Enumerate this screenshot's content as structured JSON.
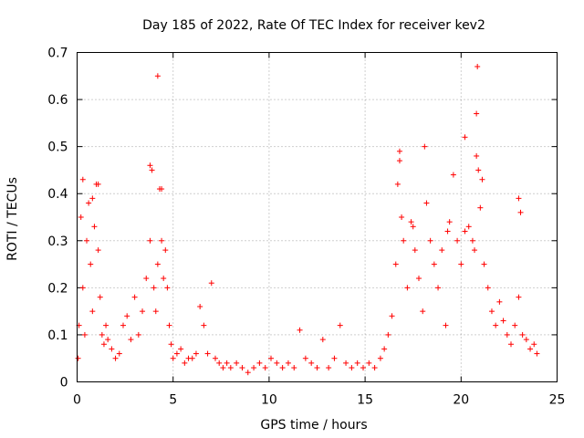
{
  "chart_data": {
    "type": "scatter",
    "title": "Day 185 of 2022, Rate Of TEC Index for receiver kev2",
    "xlabel": "GPS time / hours",
    "ylabel": "ROTI / TECUs",
    "xlim": [
      0,
      25
    ],
    "ylim": [
      0,
      0.7
    ],
    "x_ticks": [
      "0",
      "5",
      "10",
      "15",
      "20",
      "25"
    ],
    "y_ticks": [
      "0",
      "0.1",
      "0.2",
      "0.3",
      "0.4",
      "0.5",
      "0.6",
      "0.7"
    ],
    "grid": true,
    "marker": "+",
    "marker_color": "#ff0000",
    "series": [
      {
        "x": [
          0.05,
          0.1,
          0.2,
          0.3,
          0.4,
          0.5,
          0.6,
          0.7,
          0.8,
          0.9,
          1.0,
          1.1,
          1.2,
          1.3,
          1.4,
          1.5,
          1.6,
          1.8,
          2.0,
          2.2,
          2.4,
          2.6,
          2.8,
          3.0,
          3.2,
          3.4,
          3.6,
          3.8,
          3.9,
          4.0,
          4.1,
          4.2,
          4.3,
          4.4,
          4.5,
          4.6,
          4.7,
          4.8,
          4.9,
          5.0,
          5.2,
          5.4,
          5.6,
          5.8,
          6.0,
          6.2,
          6.4,
          6.6,
          6.8,
          7.0,
          7.2,
          7.4,
          7.6,
          7.8,
          8.0,
          8.3,
          8.6,
          8.9,
          9.2,
          9.5,
          9.8,
          10.1,
          10.4,
          10.7,
          11.0,
          11.3,
          11.6,
          11.9,
          12.2,
          12.5,
          12.8,
          13.1,
          13.4,
          13.7,
          14.0,
          14.3,
          14.6,
          14.9,
          15.2,
          15.5,
          15.8,
          16.0,
          16.2,
          16.4,
          16.6,
          16.7,
          16.8,
          16.9,
          17.0,
          17.2,
          17.4,
          17.6,
          17.8,
          18.0,
          18.2,
          18.4,
          18.6,
          18.8,
          19.0,
          19.2,
          19.4,
          19.6,
          19.8,
          20.0,
          20.2,
          20.4,
          20.6,
          20.7,
          20.8,
          20.9,
          21.0,
          21.2,
          21.4,
          21.6,
          21.8,
          22.0,
          22.2,
          22.4,
          22.6,
          22.8,
          23.0,
          23.2,
          23.4,
          23.6,
          23.8,
          23.95,
          0.3,
          0.8,
          1.1,
          3.8,
          4.2,
          4.4,
          16.8,
          17.5,
          18.1,
          19.3,
          20.2,
          20.8,
          20.85,
          21.1,
          23.0,
          23.1
        ],
        "y": [
          0.05,
          0.12,
          0.35,
          0.2,
          0.1,
          0.3,
          0.38,
          0.25,
          0.15,
          0.33,
          0.42,
          0.28,
          0.18,
          0.1,
          0.08,
          0.12,
          0.09,
          0.07,
          0.05,
          0.06,
          0.12,
          0.14,
          0.09,
          0.18,
          0.1,
          0.15,
          0.22,
          0.3,
          0.45,
          0.2,
          0.15,
          0.25,
          0.41,
          0.3,
          0.22,
          0.28,
          0.2,
          0.12,
          0.08,
          0.05,
          0.06,
          0.07,
          0.04,
          0.05,
          0.05,
          0.06,
          0.16,
          0.12,
          0.06,
          0.21,
          0.05,
          0.04,
          0.03,
          0.04,
          0.03,
          0.04,
          0.03,
          0.02,
          0.03,
          0.04,
          0.03,
          0.05,
          0.04,
          0.03,
          0.04,
          0.03,
          0.11,
          0.05,
          0.04,
          0.03,
          0.09,
          0.03,
          0.05,
          0.12,
          0.04,
          0.03,
          0.04,
          0.03,
          0.04,
          0.03,
          0.05,
          0.07,
          0.1,
          0.14,
          0.25,
          0.42,
          0.47,
          0.35,
          0.3,
          0.2,
          0.34,
          0.28,
          0.22,
          0.15,
          0.38,
          0.3,
          0.25,
          0.2,
          0.28,
          0.12,
          0.34,
          0.44,
          0.3,
          0.25,
          0.32,
          0.33,
          0.3,
          0.28,
          0.48,
          0.45,
          0.37,
          0.25,
          0.2,
          0.15,
          0.12,
          0.17,
          0.13,
          0.1,
          0.08,
          0.12,
          0.18,
          0.1,
          0.09,
          0.07,
          0.08,
          0.06,
          0.43,
          0.39,
          0.42,
          0.46,
          0.65,
          0.41,
          0.49,
          0.33,
          0.5,
          0.32,
          0.52,
          0.57,
          0.67,
          0.43,
          0.39,
          0.36
        ]
      }
    ]
  }
}
